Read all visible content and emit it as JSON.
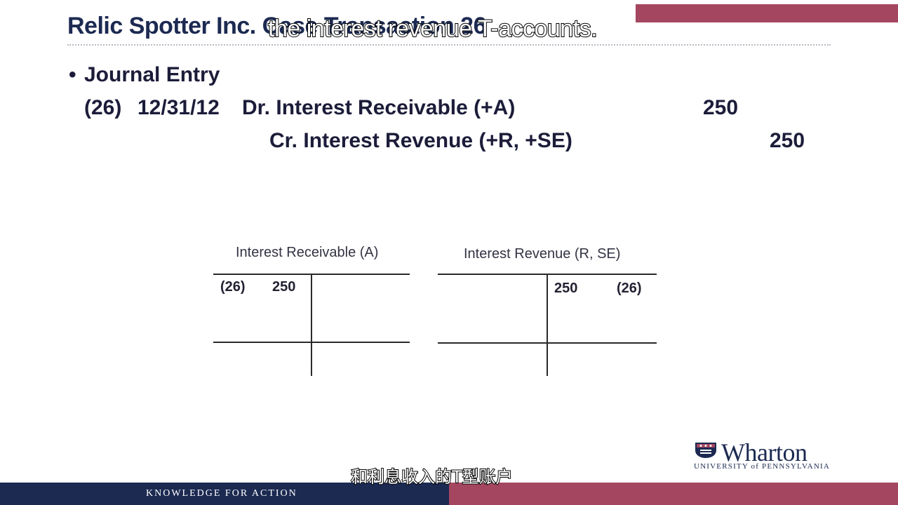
{
  "slide": {
    "title": "Relic Spotter Inc. Case Transaction 26",
    "bullet": "•",
    "heading": "Journal Entry",
    "entry": {
      "number": "(26)",
      "date": "12/31/12",
      "debit_account": "Dr. Interest Receivable (+A)",
      "debit_amount": "250",
      "credit_account": "Cr. Interest Revenue (+R, +SE)",
      "credit_amount": "250"
    }
  },
  "t_accounts": [
    {
      "title": "Interest Receivable (A)",
      "left_ref": "(26)",
      "left_amount": "250",
      "right_amount": "",
      "right_ref": ""
    },
    {
      "title": "Interest Revenue (R, SE)",
      "left_ref": "",
      "left_amount": "",
      "right_amount": "250",
      "right_ref": "(26)"
    }
  ],
  "captions": {
    "english": "the interest revenue T-accounts.",
    "chinese": "和利息收入的T型账户"
  },
  "branding": {
    "logo_word": "Wharton",
    "logo_sub": "UNIVERSITY of PENNSYLVANIA",
    "footer_tagline": "KNOWLEDGE FOR ACTION"
  },
  "icons": {
    "logo_shield": "penn-shield-icon"
  },
  "colors": {
    "navy": "#1c2a52",
    "crimson": "#a54660"
  }
}
